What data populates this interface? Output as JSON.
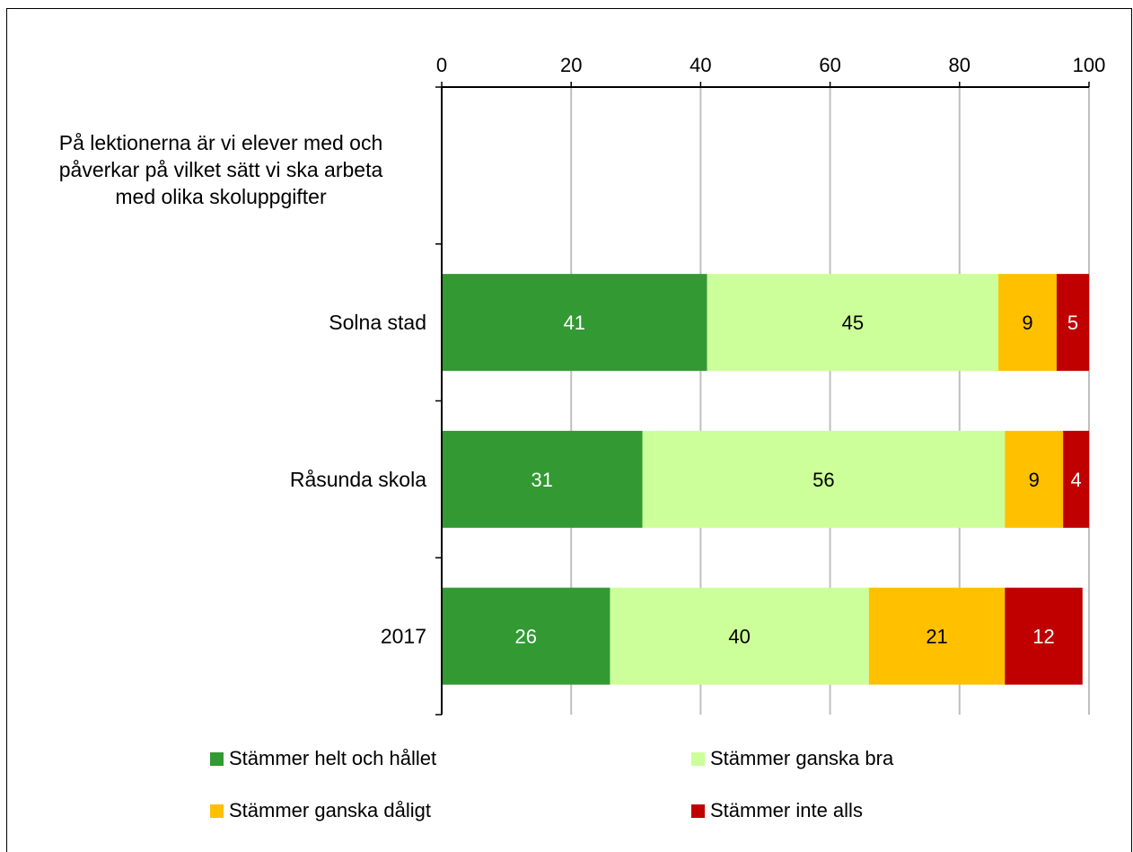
{
  "chart_data": {
    "type": "bar",
    "orientation": "horizontal",
    "stacked": true,
    "categories": [
      "På lektionerna är vi elever med och påverkar på vilket sätt vi ska arbeta med olika skoluppgifter",
      "Solna stad",
      "Råsunda skola",
      "2017"
    ],
    "series": [
      {
        "name": "Stämmer helt och hållet",
        "color": "#339933",
        "label_color": "#ffffff",
        "values": [
          null,
          41,
          31,
          26
        ]
      },
      {
        "name": "Stämmer ganska bra",
        "color": "#ccff99",
        "label_color": "#000000",
        "values": [
          null,
          45,
          56,
          40
        ]
      },
      {
        "name": "Stämmer ganska dåligt",
        "color": "#ffc000",
        "label_color": "#000000",
        "values": [
          null,
          9,
          9,
          21
        ]
      },
      {
        "name": "Stämmer inte alls",
        "color": "#c00000",
        "label_color": "#ffffff",
        "values": [
          null,
          5,
          4,
          12
        ]
      }
    ],
    "xlim": [
      0,
      100
    ],
    "xticks": [
      "0",
      "20",
      "40",
      "60",
      "80",
      "100"
    ],
    "x_axis_position": "top",
    "grid": true,
    "legend_position": "bottom"
  }
}
